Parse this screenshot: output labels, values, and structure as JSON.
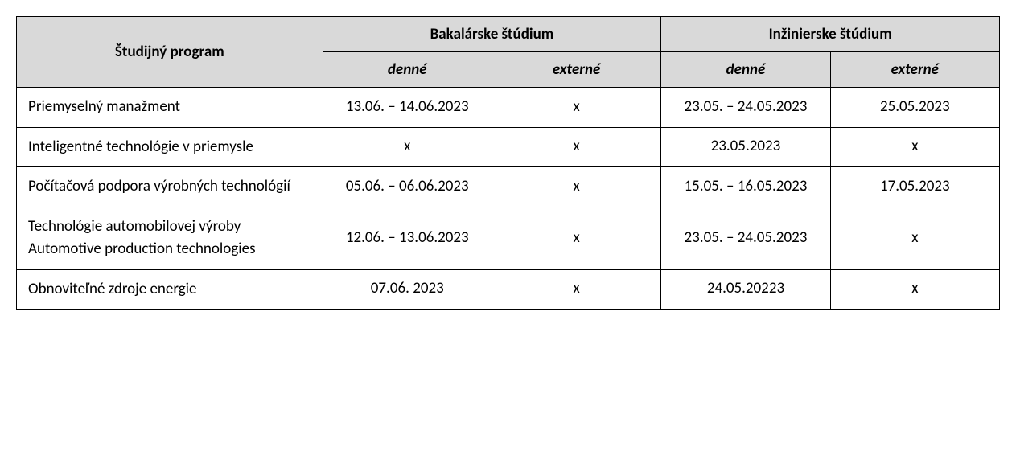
{
  "table": {
    "background_color": "#ffffff",
    "header_bg": "#d9d9d9",
    "border_color": "#000000",
    "font_family": "Calibri, Arial, sans-serif",
    "font_size": 19,
    "headers": {
      "program": "Študijný program",
      "bachelor": "Bakalárske štúdium",
      "engineer": "Inžinierske štúdium",
      "daily": "denné",
      "external": "externé"
    },
    "rows": [
      {
        "program": "Priemyselný manažment",
        "bach_daily": "13.06. – 14.06.2023",
        "bach_ext": "x",
        "eng_daily": "23.05. – 24.05.2023",
        "eng_ext": "25.05.2023"
      },
      {
        "program": "Inteligentné technológie v priemysle",
        "bach_daily": "x",
        "bach_ext": "x",
        "eng_daily": "23.05.2023",
        "eng_ext": "x"
      },
      {
        "program": "Počítačová podpora výrobných technológií",
        "bach_daily": "05.06. – 06.06.2023",
        "bach_ext": "x",
        "eng_daily": "15.05. – 16.05.2023",
        "eng_ext": "17.05.2023"
      },
      {
        "program": "Technológie automobilovej výroby Automotive production technologies",
        "bach_daily": "12.06. – 13.06.2023",
        "bach_ext": "x",
        "eng_daily": "23.05. – 24.05.2023",
        "eng_ext": "x"
      },
      {
        "program": "Obnoviteľné zdroje energie",
        "bach_daily": "07.06. 2023",
        "bach_ext": "x",
        "eng_daily": "24.05.20223",
        "eng_ext": "x"
      }
    ]
  }
}
